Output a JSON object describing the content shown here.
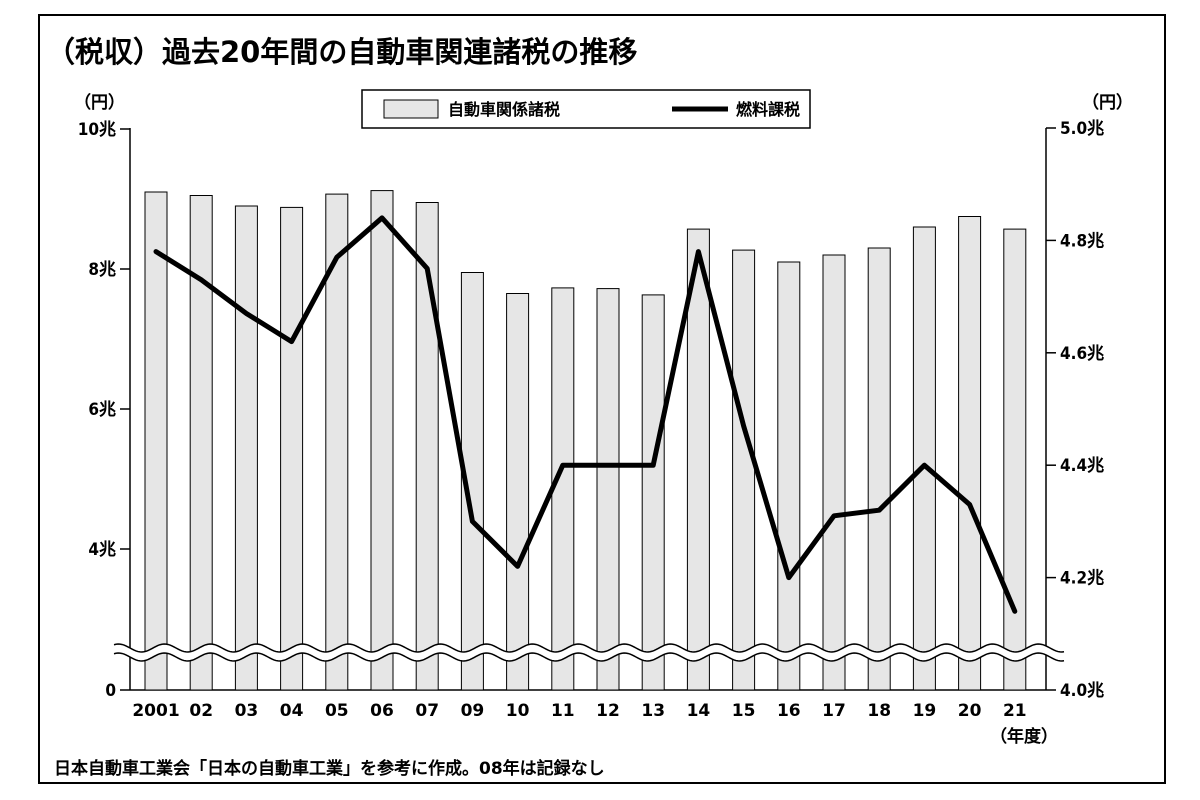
{
  "chart_data": {
    "type": "bar+line",
    "title": "（税収）過去20年間の自動車関連諸税の推移",
    "left_unit": "（円）",
    "right_unit": "（円）",
    "x_unit": "（年度）",
    "categories": [
      "2001",
      "02",
      "03",
      "04",
      "05",
      "06",
      "07",
      "09",
      "10",
      "11",
      "12",
      "13",
      "14",
      "15",
      "16",
      "17",
      "18",
      "19",
      "20",
      "21"
    ],
    "left_axis": {
      "ticks": [
        "0",
        "4兆",
        "6兆",
        "8兆",
        "10兆"
      ],
      "axis_break": true
    },
    "right_axis": {
      "ticks": [
        "4.0兆",
        "4.2兆",
        "4.4兆",
        "4.6兆",
        "4.8兆",
        "5.0兆"
      ],
      "ylim": [
        4.0,
        5.0
      ]
    },
    "series": [
      {
        "name": "自動車関係諸税",
        "type": "bar",
        "axis": "left",
        "unit": "兆円",
        "values": [
          9.1,
          9.05,
          8.9,
          8.88,
          9.07,
          9.12,
          8.95,
          7.95,
          7.65,
          7.73,
          7.72,
          7.63,
          8.57,
          8.27,
          8.1,
          8.2,
          8.3,
          8.6,
          8.75,
          8.57
        ]
      },
      {
        "name": "燃料課税",
        "type": "line",
        "axis": "right",
        "unit": "兆円",
        "values": [
          4.78,
          4.73,
          4.67,
          4.62,
          4.77,
          4.84,
          4.75,
          4.3,
          4.22,
          4.4,
          4.4,
          4.4,
          4.78,
          4.47,
          4.2,
          4.31,
          4.32,
          4.4,
          4.33,
          4.14
        ]
      }
    ],
    "source_note": "日本自動車工業会「日本の自動車工業」を参考に作成。08年は記録なし"
  }
}
